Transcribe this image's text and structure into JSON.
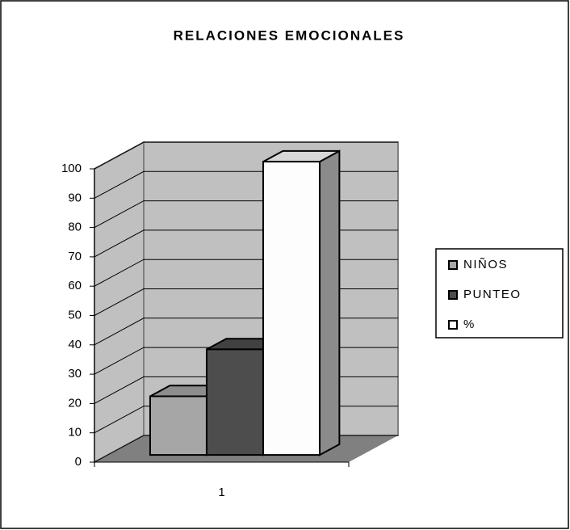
{
  "chart_data": {
    "type": "bar3d",
    "title": "RELACIONES EMOCIONALES",
    "categories": [
      "1"
    ],
    "series": [
      {
        "name": "NIÑOS",
        "color": "#a6a6a6",
        "values": [
          20
        ]
      },
      {
        "name": "PUNTEO",
        "color": "#4d4d4d",
        "values": [
          36
        ]
      },
      {
        "name": "%",
        "color": "#fdfdfd",
        "values": [
          100
        ]
      }
    ],
    "ylim": [
      0,
      100
    ],
    "yticks": [
      0,
      10,
      20,
      30,
      40,
      50,
      60,
      70,
      80,
      90,
      100
    ],
    "grid": true,
    "legend": "right"
  }
}
